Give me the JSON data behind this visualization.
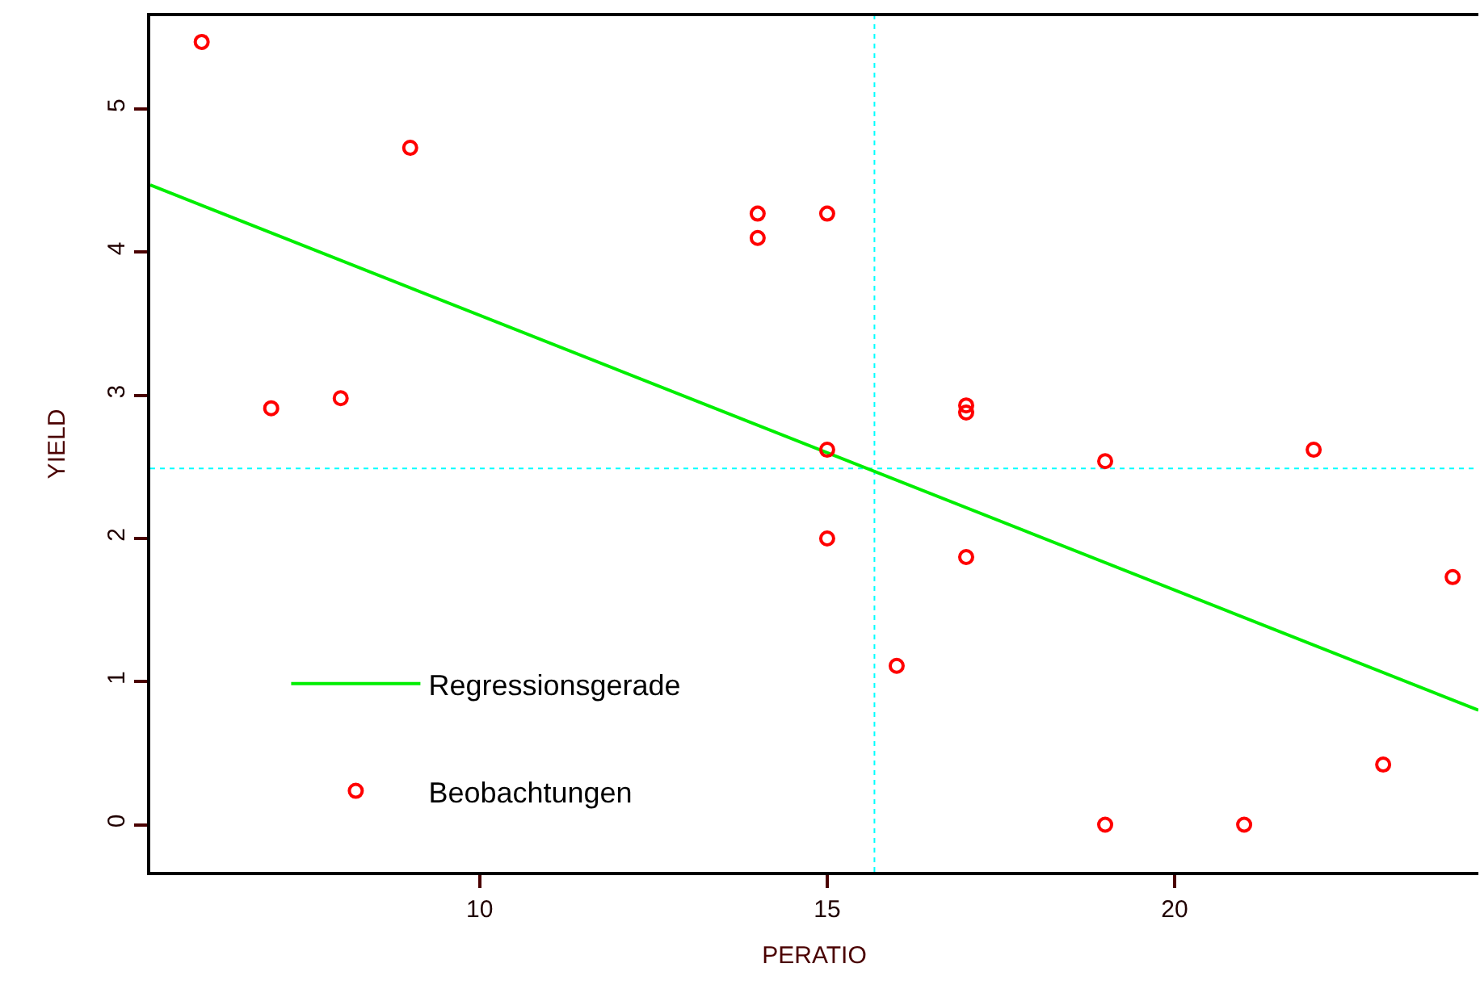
{
  "chart_data": {
    "type": "scatter",
    "xlabel": "PERATIO",
    "ylabel": "YIELD",
    "xlim": [
      5.26,
      24.37
    ],
    "ylim": [
      -0.33,
      5.65
    ],
    "xticks": [
      10,
      15,
      20
    ],
    "yticks": [
      0,
      1,
      2,
      3,
      4,
      5
    ],
    "grid": false,
    "legend": "bottom left",
    "marker": "circle",
    "series": [
      {
        "name": "Regressionsgerade",
        "type": "line",
        "color": "#00ee00",
        "x": [
          5.26,
          24.37
        ],
        "values": [
          4.47,
          0.8
        ],
        "marker": "none",
        "line_style": "solid"
      },
      {
        "name": "Beobachtungen",
        "color": "#ff0000",
        "x": [
          6,
          7,
          8,
          9,
          14,
          14,
          15,
          15,
          15,
          16,
          17,
          17,
          17,
          19,
          19,
          21,
          22,
          23,
          24
        ],
        "values": [
          5.47,
          2.91,
          2.98,
          4.73,
          4.27,
          4.1,
          4.27,
          2.62,
          2.0,
          1.11,
          2.93,
          2.88,
          1.87,
          2.54,
          0,
          0,
          2.62,
          0.42,
          1.73
        ]
      }
    ],
    "ref_lines": [
      {
        "axis": "x",
        "value": 15.68,
        "label": null,
        "color": "#00ffff",
        "line_style": "dotted"
      },
      {
        "axis": "y",
        "value": 2.49,
        "label": null,
        "color": "#00ffff",
        "line_style": "dotted"
      }
    ]
  }
}
